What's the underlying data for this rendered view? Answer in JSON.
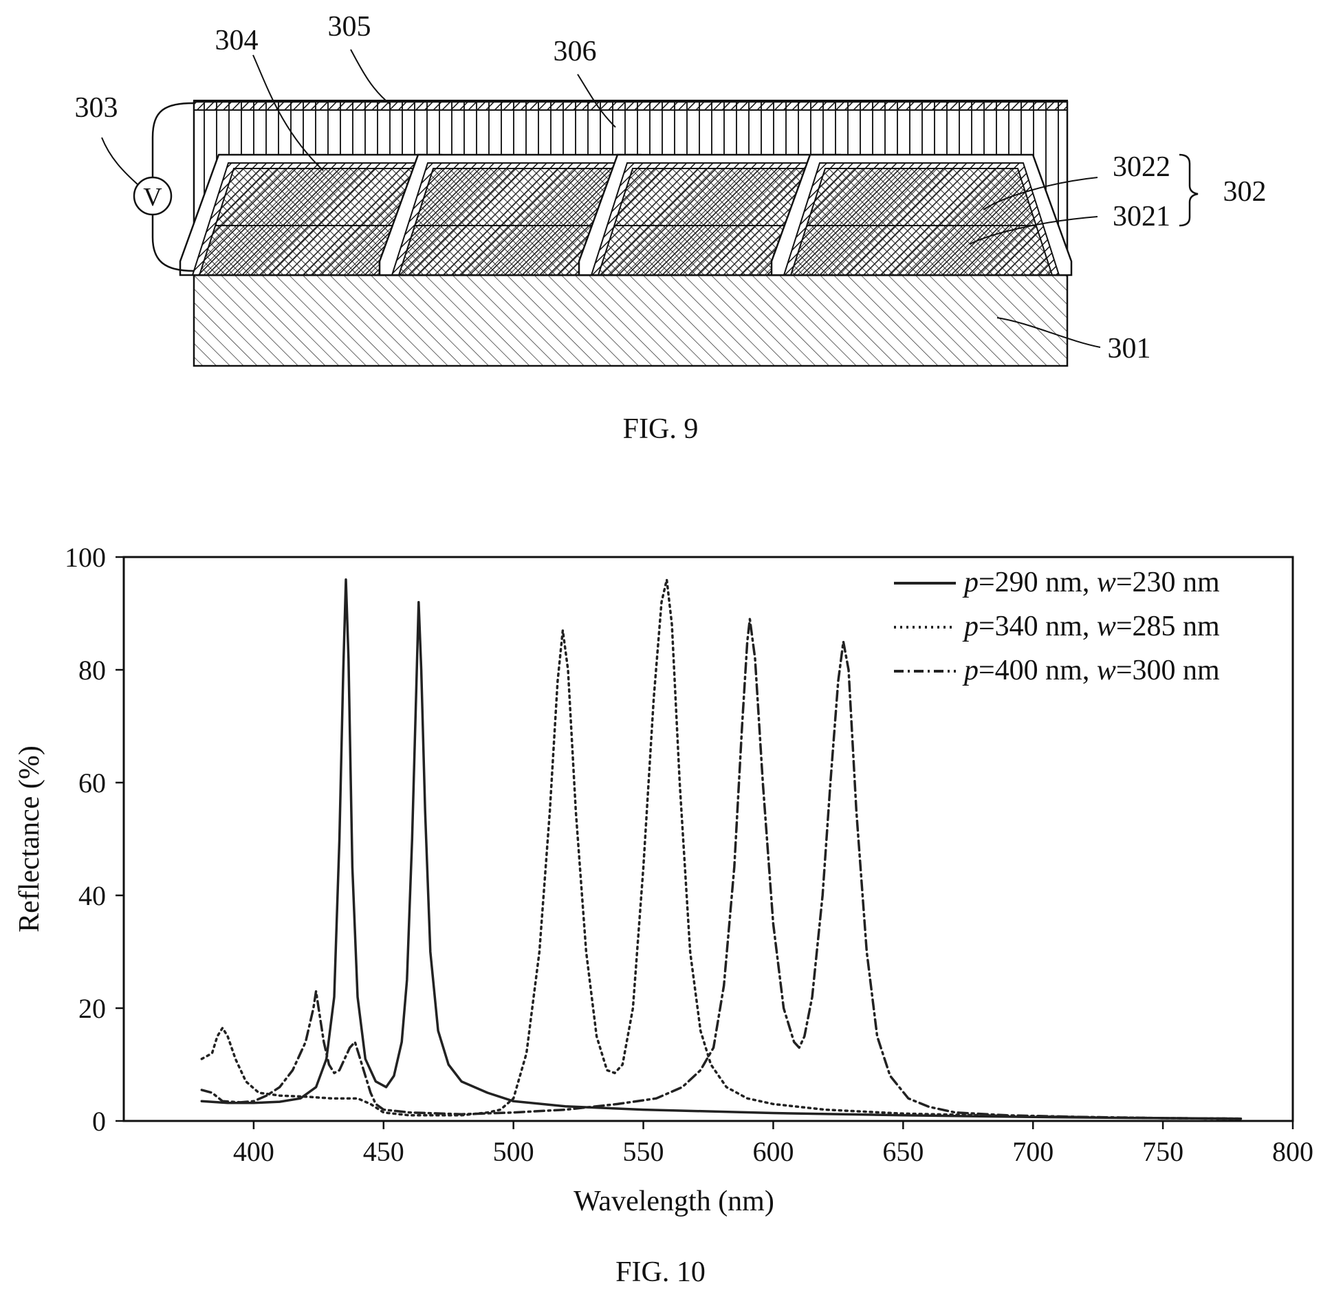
{
  "fig9": {
    "caption": "FIG. 9",
    "voltage_symbol": "V",
    "labels": {
      "l301": "301",
      "l302": "302",
      "l3021": "3021",
      "l3022": "3022",
      "l303": "303",
      "l304": "304",
      "l305": "305",
      "l306": "306"
    }
  },
  "fig10": {
    "caption": "FIG. 10"
  },
  "chart_data": {
    "type": "line",
    "title": "",
    "xlabel": "Wavelength (nm)",
    "ylabel": "Reflectance (%)",
    "xlim": [
      350,
      800
    ],
    "ylim": [
      0,
      100
    ],
    "xticks": [
      400,
      450,
      500,
      550,
      600,
      650,
      700,
      750,
      800
    ],
    "yticks": [
      0,
      20,
      40,
      60,
      80,
      100
    ],
    "grid": false,
    "legend_position": "top-right",
    "series": [
      {
        "name": "p=290 nm, w=230 nm",
        "label_parts": [
          "p",
          "=290 nm, ",
          "w",
          "=230 nm"
        ],
        "style": "solid",
        "points": [
          [
            380,
            3.5
          ],
          [
            390,
            3.2
          ],
          [
            400,
            3.2
          ],
          [
            410,
            3.4
          ],
          [
            418,
            4
          ],
          [
            424,
            6
          ],
          [
            428,
            11
          ],
          [
            431,
            22
          ],
          [
            433,
            50
          ],
          [
            434.5,
            80
          ],
          [
            435.5,
            96
          ],
          [
            436.5,
            82
          ],
          [
            438,
            45
          ],
          [
            440,
            22
          ],
          [
            443,
            11
          ],
          [
            447,
            7
          ],
          [
            451,
            6
          ],
          [
            454,
            8
          ],
          [
            457,
            14
          ],
          [
            459,
            25
          ],
          [
            461,
            50
          ],
          [
            462.5,
            75
          ],
          [
            463.5,
            92
          ],
          [
            464.5,
            80
          ],
          [
            466,
            55
          ],
          [
            468,
            30
          ],
          [
            471,
            16
          ],
          [
            475,
            10
          ],
          [
            480,
            7
          ],
          [
            490,
            5
          ],
          [
            500,
            3.5
          ],
          [
            520,
            2.6
          ],
          [
            550,
            2.0
          ],
          [
            600,
            1.4
          ],
          [
            650,
            1.0
          ],
          [
            700,
            0.7
          ],
          [
            750,
            0.5
          ],
          [
            780,
            0.4
          ]
        ]
      },
      {
        "name": "p=340 nm, w=285 nm",
        "label_parts": [
          "p",
          "=340 nm, ",
          "w",
          "=285 nm"
        ],
        "style": "dotted",
        "points": [
          [
            380,
            11
          ],
          [
            384,
            12
          ],
          [
            386,
            15
          ],
          [
            388,
            16.5
          ],
          [
            390,
            15
          ],
          [
            393,
            11
          ],
          [
            397,
            7
          ],
          [
            402,
            5
          ],
          [
            410,
            4.5
          ],
          [
            420,
            4.3
          ],
          [
            430,
            4
          ],
          [
            440,
            4
          ],
          [
            445,
            3
          ],
          [
            450,
            1.5
          ],
          [
            460,
            1
          ],
          [
            480,
            1
          ],
          [
            490,
            1.5
          ],
          [
            495,
            2
          ],
          [
            500,
            4
          ],
          [
            505,
            12
          ],
          [
            510,
            30
          ],
          [
            514,
            55
          ],
          [
            517,
            78
          ],
          [
            519,
            87
          ],
          [
            521,
            80
          ],
          [
            524,
            55
          ],
          [
            528,
            30
          ],
          [
            532,
            15
          ],
          [
            536,
            9
          ],
          [
            539,
            8.5
          ],
          [
            542,
            10
          ],
          [
            546,
            20
          ],
          [
            550,
            45
          ],
          [
            554,
            75
          ],
          [
            557,
            92
          ],
          [
            559,
            96
          ],
          [
            561,
            88
          ],
          [
            564,
            60
          ],
          [
            568,
            30
          ],
          [
            572,
            16
          ],
          [
            576,
            10
          ],
          [
            582,
            6
          ],
          [
            590,
            4
          ],
          [
            600,
            3
          ],
          [
            620,
            2
          ],
          [
            650,
            1.3
          ],
          [
            700,
            0.8
          ],
          [
            750,
            0.5
          ],
          [
            780,
            0.4
          ]
        ]
      },
      {
        "name": "p=400 nm, w=300 nm",
        "label_parts": [
          "p",
          "=400 nm, ",
          "w",
          "=300 nm"
        ],
        "style": "dashdot",
        "points": [
          [
            380,
            5.5
          ],
          [
            384,
            5
          ],
          [
            388,
            3.5
          ],
          [
            395,
            3.3
          ],
          [
            400,
            3.5
          ],
          [
            405,
            4.5
          ],
          [
            410,
            6
          ],
          [
            415,
            9
          ],
          [
            420,
            14
          ],
          [
            423,
            20
          ],
          [
            424,
            23
          ],
          [
            425,
            20
          ],
          [
            427,
            14
          ],
          [
            429,
            10
          ],
          [
            431,
            8.5
          ],
          [
            433,
            9
          ],
          [
            435,
            11
          ],
          [
            437,
            13
          ],
          [
            439,
            14
          ],
          [
            441,
            11
          ],
          [
            443,
            8
          ],
          [
            445,
            5
          ],
          [
            447,
            3
          ],
          [
            450,
            2
          ],
          [
            460,
            1.5
          ],
          [
            480,
            1.2
          ],
          [
            500,
            1.5
          ],
          [
            520,
            2
          ],
          [
            540,
            3
          ],
          [
            555,
            4
          ],
          [
            565,
            6
          ],
          [
            572,
            9
          ],
          [
            577,
            13
          ],
          [
            581,
            24
          ],
          [
            585,
            45
          ],
          [
            588,
            70
          ],
          [
            590,
            85
          ],
          [
            591,
            89
          ],
          [
            593,
            82
          ],
          [
            596,
            60
          ],
          [
            600,
            35
          ],
          [
            604,
            20
          ],
          [
            608,
            14
          ],
          [
            610,
            13
          ],
          [
            612,
            15
          ],
          [
            615,
            22
          ],
          [
            619,
            40
          ],
          [
            622,
            60
          ],
          [
            625,
            78
          ],
          [
            627,
            85
          ],
          [
            629,
            80
          ],
          [
            632,
            55
          ],
          [
            636,
            30
          ],
          [
            640,
            15
          ],
          [
            645,
            8
          ],
          [
            652,
            4
          ],
          [
            660,
            2.5
          ],
          [
            670,
            1.5
          ],
          [
            690,
            1
          ],
          [
            720,
            0.7
          ],
          [
            750,
            0.5
          ],
          [
            780,
            0.4
          ]
        ]
      }
    ]
  }
}
